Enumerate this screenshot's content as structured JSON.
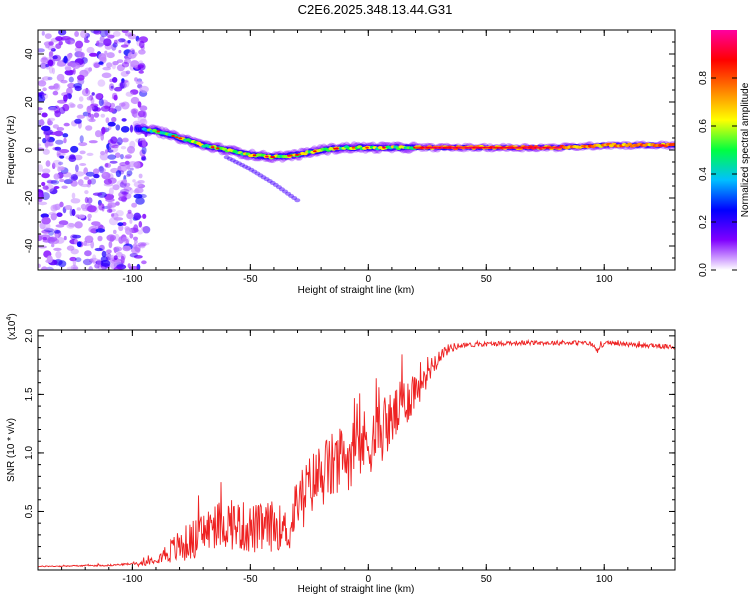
{
  "title": "C2E6.2025.348.13.44.G31",
  "chart_data": [
    {
      "type": "heatmap",
      "title": "C2E6.2025.348.13.44.G31",
      "xlabel": "Height of straight line (km)",
      "ylabel": "Frequency (Hz)",
      "xlim": [
        -140,
        130
      ],
      "ylim": [
        -50,
        50
      ],
      "x_ticks": [
        -100,
        -50,
        0,
        50,
        100
      ],
      "y_ticks": [
        -40,
        -20,
        0,
        20,
        40
      ],
      "colorbar": {
        "label": "Normalized spectral amplitude",
        "range": [
          0,
          1
        ],
        "ticks": [
          "0.0",
          "0.2",
          "0.4",
          "0.6",
          "0.8"
        ],
        "colormap": [
          "#ffffff",
          "#8000ff",
          "#0000ff",
          "#00c0ff",
          "#00ff40",
          "#ffff00",
          "#ff8000",
          "#ff0000",
          "#ff00a0"
        ]
      },
      "ridge": {
        "x": [
          -100,
          -90,
          -80,
          -70,
          -60,
          -50,
          -40,
          -30,
          -20,
          -10,
          0,
          10,
          20,
          40,
          60,
          80,
          100,
          130
        ],
        "y": [
          9,
          8,
          5,
          2,
          0,
          -2,
          -3,
          -2,
          0,
          1,
          1,
          1,
          1,
          1,
          1,
          1,
          2,
          2
        ]
      },
      "secondary_branch": {
        "x": [
          -60,
          -50,
          -40,
          -30
        ],
        "y": [
          -3,
          -8,
          -14,
          -21
        ]
      },
      "noise_region_x": [
        -140,
        -100
      ]
    },
    {
      "type": "line",
      "xlabel": "Height of straight line (km)",
      "ylabel": "SNR (10 * v/v)",
      "y_multiplier": "(x10",
      "y_multiplier_exp": "4",
      "y_multiplier_close": ")",
      "xlim": [
        -140,
        130
      ],
      "ylim": [
        0,
        2.05
      ],
      "x_ticks": [
        -100,
        -50,
        0,
        50,
        100
      ],
      "y_ticks": [
        0.5,
        1.0,
        1.5,
        2.0
      ],
      "color": "#ee2222",
      "envelope": {
        "x": [
          -140,
          -110,
          -95,
          -90,
          -85,
          -80,
          -75,
          -70,
          -65,
          -60,
          -55,
          -50,
          -45,
          -40,
          -35,
          -33,
          -32,
          -30,
          -25,
          -20,
          -15,
          -10,
          -5,
          0,
          5,
          10,
          15,
          20,
          25,
          30,
          35,
          40,
          50,
          60,
          70,
          80,
          90,
          95,
          97,
          100,
          110,
          115,
          120,
          130
        ],
        "y": [
          0.03,
          0.04,
          0.06,
          0.1,
          0.15,
          0.2,
          0.25,
          0.32,
          0.38,
          0.4,
          0.38,
          0.35,
          0.35,
          0.38,
          0.35,
          0.3,
          0.45,
          0.6,
          0.72,
          0.82,
          0.88,
          0.95,
          1.05,
          1.1,
          1.18,
          1.28,
          1.42,
          1.55,
          1.7,
          1.83,
          1.9,
          1.92,
          1.93,
          1.94,
          1.94,
          1.94,
          1.94,
          1.93,
          1.87,
          1.94,
          1.93,
          1.91,
          1.92,
          1.9
        ]
      },
      "noise_amplitude": {
        "x": [
          -140,
          -100,
          -90,
          -80,
          -60,
          -40,
          -33,
          -32,
          -20,
          0,
          20,
          30,
          40,
          130
        ],
        "y": [
          0.004,
          0.008,
          0.04,
          0.15,
          0.22,
          0.22,
          0.15,
          0.2,
          0.3,
          0.3,
          0.2,
          0.06,
          0.02,
          0.02
        ]
      }
    }
  ]
}
